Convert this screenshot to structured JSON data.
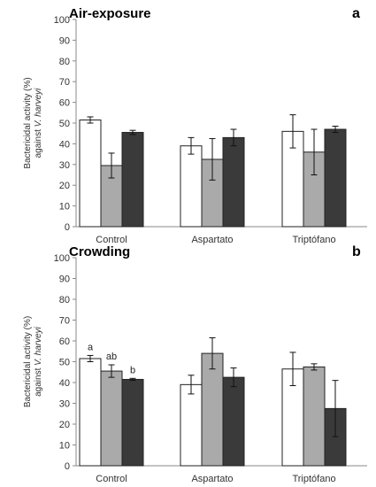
{
  "chart_data": [
    {
      "type": "bar",
      "title": "Air-exposure",
      "panel_label": "a",
      "ylabel": "Bactericidal activity (%)",
      "ylabel_line2_prefix": "against ",
      "ylabel_line2_italic": "V. harveyi",
      "ylim": [
        0,
        100
      ],
      "yticks": [
        0,
        10,
        20,
        30,
        40,
        50,
        60,
        70,
        80,
        90,
        100
      ],
      "categories": [
        "Control",
        "Aspartato",
        "Triptófano"
      ],
      "series": [
        {
          "color": "#ffffff",
          "values": [
            51.5,
            39,
            46
          ],
          "errors": [
            1.5,
            4,
            8
          ]
        },
        {
          "color": "#aaaaaa",
          "values": [
            29.5,
            32.5,
            36
          ],
          "errors": [
            6,
            10,
            11
          ]
        },
        {
          "color": "#3a3a3a",
          "values": [
            45.5,
            43,
            47
          ],
          "errors": [
            1,
            4,
            1.5
          ]
        }
      ],
      "annotations": []
    },
    {
      "type": "bar",
      "title": "Crowding",
      "panel_label": "b",
      "ylabel": "Bactericidal activity (%)",
      "ylabel_line2_prefix": "against ",
      "ylabel_line2_italic": "V. harveyi",
      "ylim": [
        0,
        100
      ],
      "yticks": [
        0,
        10,
        20,
        30,
        40,
        50,
        60,
        70,
        80,
        90,
        100
      ],
      "categories": [
        "Control",
        "Aspartato",
        "Triptófano"
      ],
      "series": [
        {
          "color": "#ffffff",
          "values": [
            51.5,
            39,
            46.5
          ],
          "errors": [
            1.5,
            4.5,
            8
          ]
        },
        {
          "color": "#aaaaaa",
          "values": [
            45.5,
            54,
            47.5
          ],
          "errors": [
            3,
            7.5,
            1.5
          ]
        },
        {
          "color": "#3a3a3a",
          "values": [
            41.5,
            42.5,
            27.5
          ],
          "errors": [
            0.5,
            4.5,
            13.5
          ]
        }
      ],
      "annotations": [
        {
          "category": 0,
          "series": 0,
          "text": "a"
        },
        {
          "category": 0,
          "series": 1,
          "text": "ab"
        },
        {
          "category": 0,
          "series": 2,
          "text": "b"
        }
      ]
    }
  ]
}
